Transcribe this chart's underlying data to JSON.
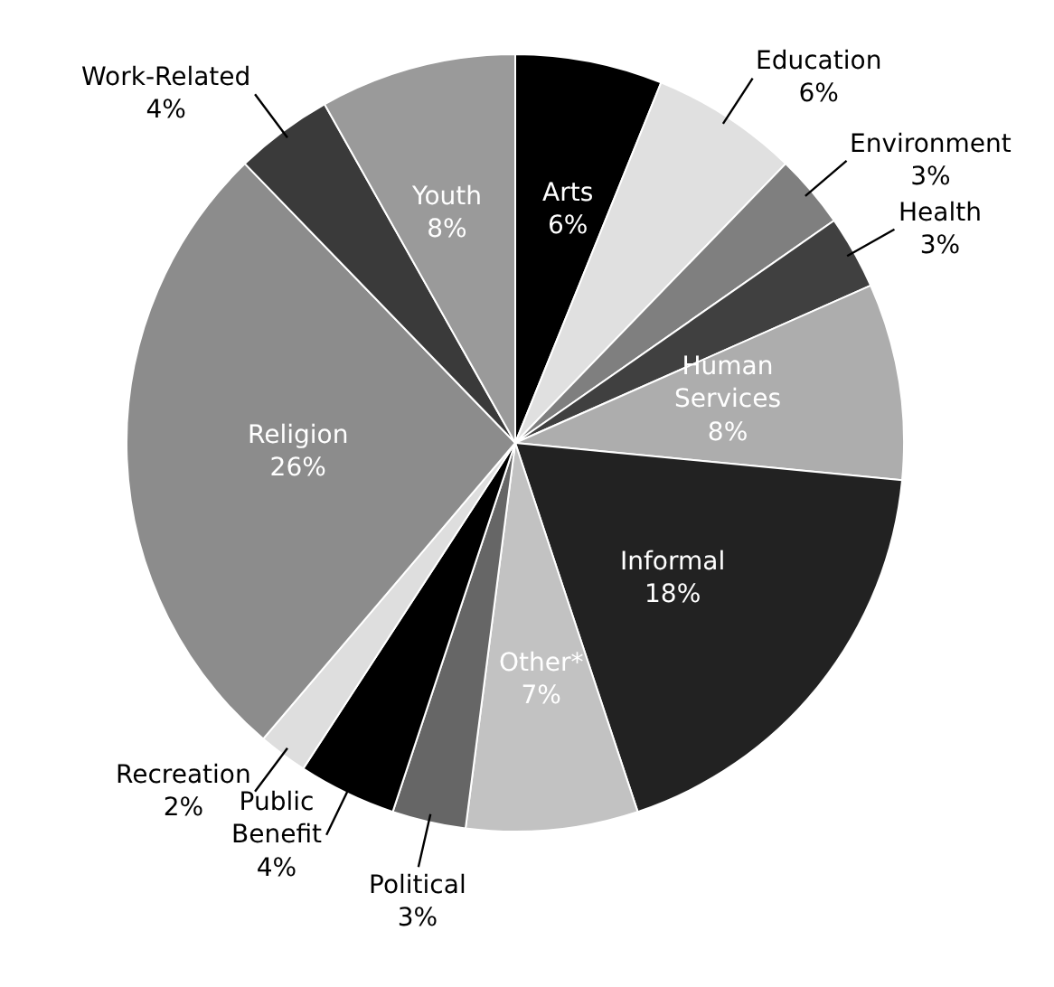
{
  "chart_data": {
    "type": "pie",
    "categories": [
      "Arts",
      "Education",
      "Environment",
      "Health",
      "Human Services",
      "Informal",
      "Other*",
      "Political",
      "Public Benefit",
      "Recreation",
      "Religion",
      "Work-Related",
      "Youth"
    ],
    "values": [
      6,
      6,
      3,
      3,
      8,
      18,
      7,
      3,
      4,
      2,
      26,
      4,
      8
    ],
    "value_labels": [
      "6%",
      "6%",
      "3%",
      "3%",
      "8%",
      "18%",
      "7%",
      "3%",
      "4%",
      "2%",
      "26%",
      "4%",
      "8%"
    ],
    "colors": [
      "#000000",
      "#e0e0e0",
      "#7f7f7f",
      "#404040",
      "#adadad",
      "#222222",
      "#c2c2c2",
      "#666666",
      "#000000",
      "#dedede",
      "#8c8c8c",
      "#3a3a3a",
      "#9a9a9a"
    ],
    "legend": false
  }
}
